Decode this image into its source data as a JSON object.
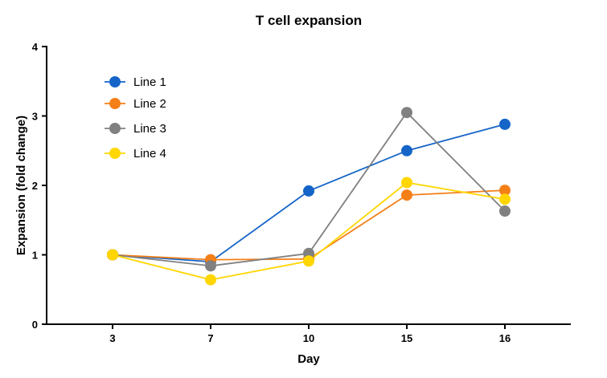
{
  "chart_data": {
    "type": "line",
    "title": "T cell expansion",
    "xlabel": "Day",
    "ylabel": "Expansion (fold change)",
    "categories": [
      "3",
      "7",
      "10",
      "15",
      "16"
    ],
    "ylim": [
      0,
      4
    ],
    "yticks": [
      "0",
      "1",
      "2",
      "3",
      "4"
    ],
    "grid": false,
    "legend_position": "top-left",
    "series": [
      {
        "name": "Line 1",
        "color": "#1565C8",
        "values": [
          1.0,
          0.9,
          1.92,
          2.5,
          2.88
        ]
      },
      {
        "name": "Line 2",
        "color": "#F57F17",
        "values": [
          1.0,
          0.93,
          0.94,
          1.86,
          1.93
        ]
      },
      {
        "name": "Line 3",
        "color": "#808080",
        "values": [
          1.0,
          0.84,
          1.02,
          3.05,
          1.63
        ]
      },
      {
        "name": "Line 4",
        "color": "#FFD600",
        "values": [
          1.0,
          0.64,
          0.91,
          2.04,
          1.8
        ]
      }
    ]
  }
}
